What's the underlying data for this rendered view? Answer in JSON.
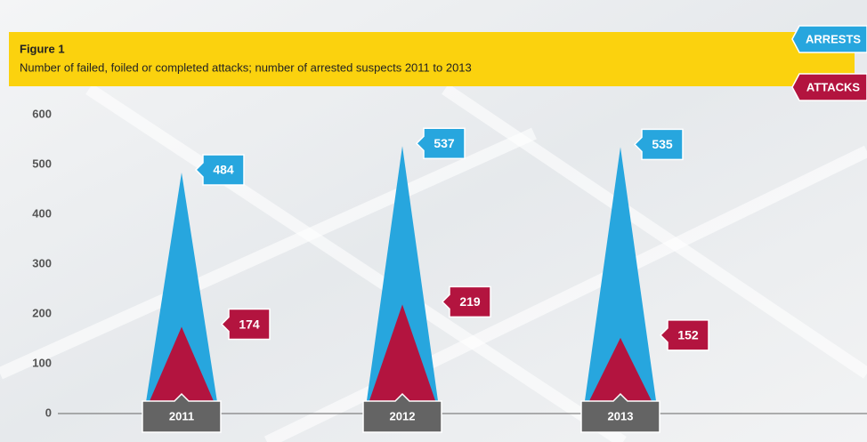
{
  "chart_data": {
    "type": "spike",
    "title": "Figure 1",
    "subtitle": "Number of failed, foiled or completed attacks; number of arrested suspects 2011 to 2013",
    "categories": [
      "2011",
      "2012",
      "2013"
    ],
    "series": [
      {
        "name": "ARRESTS",
        "color": "#27a6de",
        "values": [
          484,
          537,
          535
        ]
      },
      {
        "name": "ATTACKS",
        "color": "#b3143f",
        "values": [
          174,
          219,
          152
        ]
      }
    ],
    "ylim": [
      0,
      600
    ],
    "yticks": [
      0,
      100,
      200,
      300,
      400,
      500,
      600
    ]
  }
}
